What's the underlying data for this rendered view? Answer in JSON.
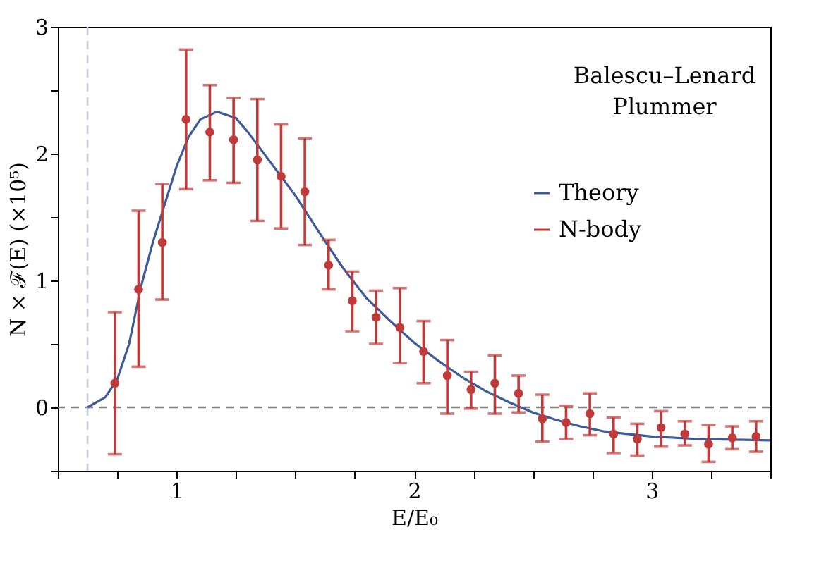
{
  "chart_data": {
    "type": "scatter",
    "xlabel": "E/E₀",
    "ylabel": "N × ℱ(E)   (×10⁵)",
    "annotations": [
      "Balescu–Lenard",
      "Plummer"
    ],
    "xlim": [
      0.5,
      3.5
    ],
    "ylim": [
      -0.5,
      3
    ],
    "xticks": [
      {
        "value": 0.5,
        "label": null
      },
      {
        "value": 0.75,
        "label": null
      },
      1,
      {
        "value": 1.25,
        "label": null
      },
      {
        "value": 1.5,
        "label": null
      },
      {
        "value": 1.75,
        "label": null
      },
      2,
      {
        "value": 2.25,
        "label": null
      },
      {
        "value": 2.5,
        "label": null
      },
      {
        "value": 2.75,
        "label": null
      },
      3,
      {
        "value": 3.25,
        "label": null
      },
      {
        "value": 3.5,
        "label": null
      }
    ],
    "yticks": [
      {
        "value": -0.5,
        "label": null
      },
      0,
      {
        "value": 0.5,
        "label": null
      },
      1,
      {
        "value": 1.5,
        "label": null
      },
      2,
      {
        "value": 2.5,
        "label": null
      },
      3
    ],
    "grid": false,
    "legend": "right",
    "ref_lines": [
      {
        "axis": "y",
        "value": 0,
        "color": "#808080",
        "line_style": "dashed"
      },
      {
        "axis": "x",
        "value": 0.625,
        "color": "#c5cde3",
        "line_style": "dashed"
      }
    ],
    "series": [
      {
        "name": "Theory",
        "type": "line",
        "color": "#3d5a99",
        "marker": "none",
        "line_style": "solid",
        "x": [
          0.625,
          0.7,
          0.75,
          0.8,
          0.85,
          0.9,
          0.95,
          1.0,
          1.05,
          1.1,
          1.17,
          1.25,
          1.3,
          1.4,
          1.5,
          1.6,
          1.7,
          1.8,
          1.9,
          2.0,
          2.1,
          2.2,
          2.3,
          2.4,
          2.5,
          2.6,
          2.7,
          2.8,
          2.9,
          3.0,
          3.2,
          3.5
        ],
        "values": [
          0,
          0.08,
          0.22,
          0.5,
          0.95,
          1.3,
          1.6,
          1.9,
          2.13,
          2.27,
          2.33,
          2.28,
          2.17,
          1.92,
          1.67,
          1.38,
          1.1,
          0.86,
          0.68,
          0.51,
          0.37,
          0.24,
          0.13,
          0.04,
          -0.04,
          -0.1,
          -0.15,
          -0.19,
          -0.21,
          -0.23,
          -0.25,
          -0.26
        ]
      },
      {
        "name": "N-body",
        "color": "#c03a3a",
        "marker": "circle",
        "x": [
          0.74,
          0.84,
          0.94,
          1.04,
          1.14,
          1.24,
          1.34,
          1.44,
          1.54,
          1.64,
          1.74,
          1.84,
          1.94,
          2.04,
          2.14,
          2.24,
          2.34,
          2.44,
          2.54,
          2.64,
          2.74,
          2.84,
          2.94,
          3.04,
          3.14,
          3.24,
          3.34,
          3.44
        ],
        "values": [
          0.19,
          0.93,
          1.3,
          2.27,
          2.17,
          2.11,
          1.95,
          1.82,
          1.7,
          1.12,
          0.84,
          0.71,
          0.63,
          0.44,
          0.25,
          0.14,
          0.19,
          0.11,
          -0.09,
          -0.12,
          -0.05,
          -0.21,
          -0.25,
          -0.16,
          -0.21,
          -0.29,
          -0.24,
          -0.23
        ],
        "errors": [
          [
            -0.37,
            0.75
          ],
          [
            0.32,
            1.55
          ],
          [
            0.85,
            1.76
          ],
          [
            1.72,
            2.82
          ],
          [
            1.79,
            2.54
          ],
          [
            1.77,
            2.44
          ],
          [
            1.47,
            2.43
          ],
          [
            1.41,
            2.23
          ],
          [
            1.28,
            2.12
          ],
          [
            0.93,
            1.32
          ],
          [
            0.6,
            1.07
          ],
          [
            0.5,
            0.92
          ],
          [
            0.35,
            0.94
          ],
          [
            0.19,
            0.68
          ],
          [
            -0.05,
            0.53
          ],
          [
            -0.01,
            0.28
          ],
          [
            -0.05,
            0.41
          ],
          [
            -0.04,
            0.25
          ],
          [
            -0.27,
            0.1
          ],
          [
            -0.25,
            0.01
          ],
          [
            -0.22,
            0.11
          ],
          [
            -0.36,
            -0.08
          ],
          [
            -0.38,
            -0.13
          ],
          [
            -0.31,
            -0.03
          ],
          [
            -0.3,
            -0.11
          ],
          [
            -0.43,
            -0.14
          ],
          [
            -0.33,
            -0.15
          ],
          [
            -0.35,
            -0.11
          ]
        ]
      }
    ]
  }
}
